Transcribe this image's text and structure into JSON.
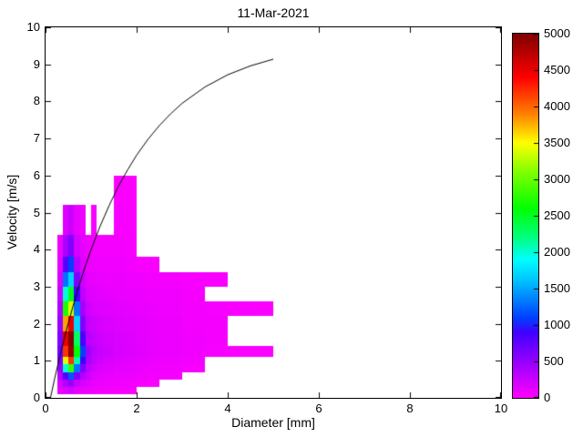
{
  "chart_data": {
    "type": "heatmap",
    "title": "11-Mar-2021",
    "xlabel": "Diameter [mm]",
    "ylabel": "Velocity [m/s]",
    "xlim": [
      0,
      10
    ],
    "ylim": [
      0,
      10
    ],
    "x_ticks": [
      0,
      2,
      4,
      6,
      8,
      10
    ],
    "y_ticks": [
      0,
      1,
      2,
      3,
      4,
      5,
      6,
      7,
      8,
      9,
      10
    ],
    "grid": false,
    "axis_color": "#000000",
    "background_color": "#ffffff",
    "counts_layout": "counts[i][j]: i = diameter bin (left to right), j = velocity bin (bottom to top); 0 = empty cell (white)",
    "diameter_bin_edges_mm": [
      0.25,
      0.375,
      0.5,
      0.625,
      0.75,
      0.875,
      1.0,
      1.125,
      1.25,
      1.5,
      1.75,
      2.0,
      2.25,
      2.5,
      3.0,
      3.5,
      4.0,
      4.5,
      5.0
    ],
    "velocity_bin_edges_ms": [
      0.1,
      0.3,
      0.5,
      0.7,
      0.9,
      1.1,
      1.4,
      1.8,
      2.2,
      2.6,
      3.0,
      3.4,
      3.8,
      4.4,
      5.2,
      6.0
    ],
    "counts": [
      [
        120,
        200,
        350,
        500,
        650,
        700,
        600,
        500,
        380,
        280,
        180,
        120,
        80,
        0,
        0
      ],
      [
        150,
        350,
        800,
        2000,
        3400,
        4200,
        4500,
        3800,
        2700,
        2000,
        1300,
        800,
        400,
        150,
        0
      ],
      [
        200,
        500,
        1200,
        2800,
        4200,
        4900,
        5000,
        4500,
        3400,
        2500,
        1700,
        1100,
        600,
        250,
        0
      ],
      [
        120,
        250,
        600,
        1300,
        2100,
        2600,
        2300,
        1700,
        1300,
        900,
        600,
        350,
        200,
        100,
        0
      ],
      [
        100,
        180,
        350,
        600,
        900,
        1100,
        850,
        600,
        420,
        300,
        220,
        150,
        120,
        80,
        0
      ],
      [
        80,
        140,
        220,
        320,
        420,
        450,
        350,
        280,
        220,
        160,
        120,
        90,
        60,
        0,
        0
      ],
      [
        60,
        100,
        150,
        220,
        280,
        320,
        280,
        230,
        180,
        140,
        110,
        80,
        60,
        40,
        0
      ],
      [
        50,
        80,
        120,
        170,
        220,
        260,
        230,
        190,
        150,
        120,
        90,
        70,
        50,
        0,
        0
      ],
      [
        40,
        70,
        100,
        140,
        180,
        220,
        200,
        170,
        140,
        110,
        85,
        65,
        45,
        0,
        0
      ],
      [
        35,
        60,
        90,
        120,
        150,
        180,
        170,
        150,
        125,
        100,
        80,
        60,
        45,
        35,
        25
      ],
      [
        30,
        50,
        80,
        105,
        130,
        155,
        150,
        135,
        115,
        90,
        70,
        50,
        40,
        30,
        20
      ],
      [
        0,
        40,
        60,
        85,
        105,
        125,
        120,
        110,
        95,
        80,
        60,
        40,
        0,
        0,
        0
      ],
      [
        0,
        30,
        50,
        70,
        90,
        105,
        100,
        95,
        85,
        70,
        50,
        30,
        0,
        0,
        0
      ],
      [
        0,
        0,
        40,
        55,
        70,
        85,
        85,
        80,
        70,
        60,
        45,
        0,
        0,
        0,
        0
      ],
      [
        0,
        0,
        0,
        40,
        50,
        60,
        60,
        58,
        52,
        45,
        40,
        0,
        0,
        0,
        0
      ],
      [
        0,
        0,
        0,
        0,
        0,
        40,
        45,
        45,
        42,
        0,
        35,
        0,
        0,
        0,
        0
      ],
      [
        0,
        0,
        0,
        0,
        0,
        30,
        0,
        0,
        32,
        0,
        0,
        0,
        0,
        0,
        0
      ],
      [
        0,
        0,
        0,
        0,
        0,
        25,
        0,
        0,
        28,
        0,
        0,
        0,
        0,
        0,
        0
      ]
    ],
    "colorbar": {
      "min": 0,
      "max": 5000,
      "ticks": [
        0,
        500,
        1000,
        1500,
        2000,
        2500,
        3000,
        3500,
        4000,
        4500,
        5000
      ],
      "stops": [
        [
          0,
          "#ff00ff"
        ],
        [
          900,
          "#4000ff"
        ],
        [
          1100,
          "#0040ff"
        ],
        [
          1600,
          "#00c0ff"
        ],
        [
          1900,
          "#00ffff"
        ],
        [
          2200,
          "#00ff80"
        ],
        [
          2600,
          "#00ff00"
        ],
        [
          3100,
          "#80ff00"
        ],
        [
          3500,
          "#ffff00"
        ],
        [
          3900,
          "#ff8000"
        ],
        [
          4400,
          "#ff0000"
        ],
        [
          5000,
          "#800000"
        ]
      ]
    },
    "curve": {
      "name": "terminal-velocity-vs-diameter",
      "color": "#000000",
      "d_mm": [
        0.11,
        0.2,
        0.3,
        0.4,
        0.5,
        0.6,
        0.7,
        0.8,
        0.9,
        1.0,
        1.2,
        1.4,
        1.6,
        1.8,
        2.0,
        2.25,
        2.5,
        2.75,
        3.0,
        3.5,
        4.0,
        4.5,
        5.0
      ],
      "v_ms": [
        0.01,
        0.52,
        1.05,
        1.55,
        2.02,
        2.46,
        2.88,
        3.28,
        3.65,
        4.0,
        4.64,
        5.2,
        5.71,
        6.15,
        6.55,
        6.98,
        7.35,
        7.67,
        7.95,
        8.39,
        8.72,
        8.96,
        9.14
      ]
    }
  }
}
